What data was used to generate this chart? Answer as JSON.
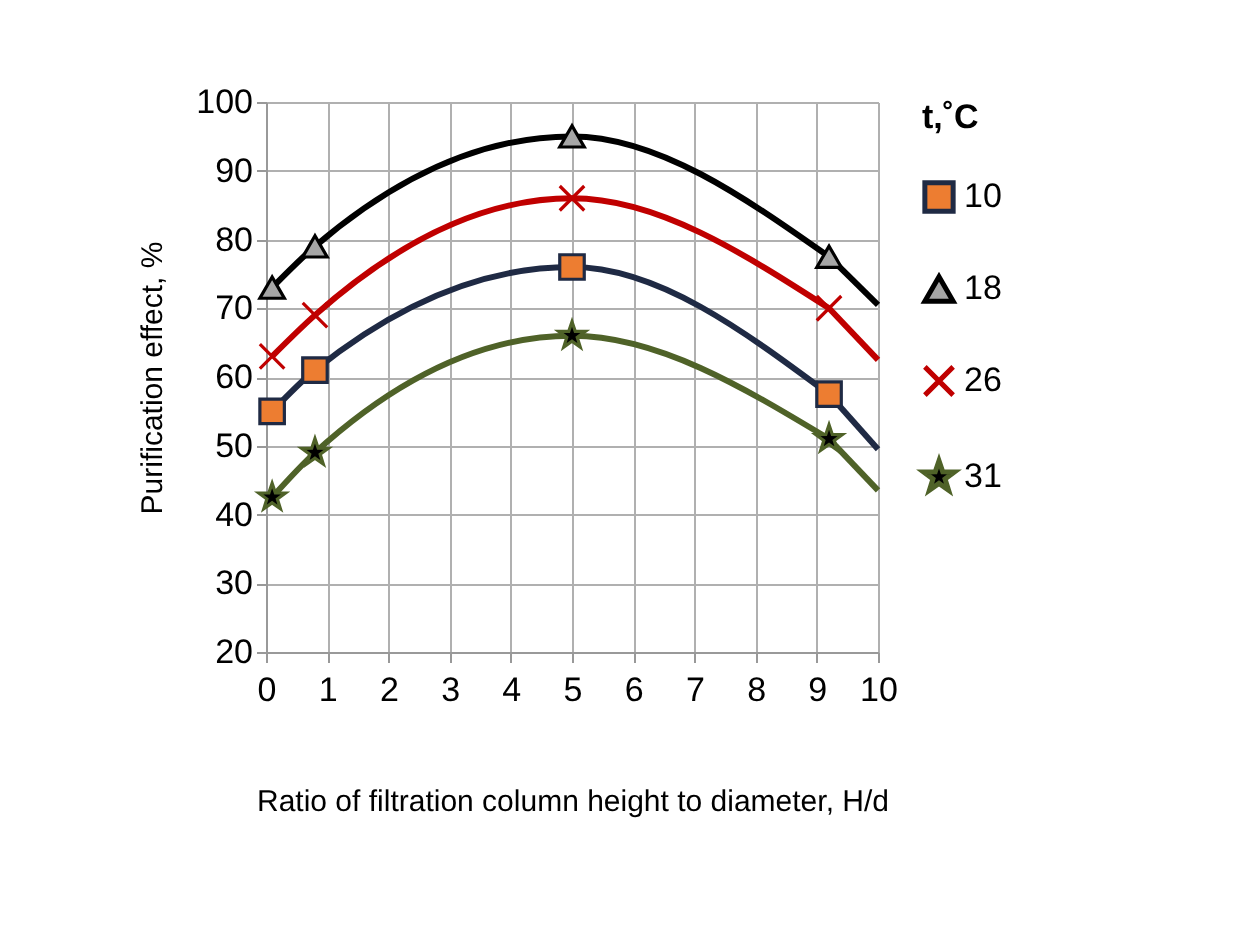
{
  "chart_data": {
    "type": "line",
    "xlabel": "Ratio of filtration column height to diameter, H/d",
    "ylabel": "Purification effect, %",
    "legend_title": "t,˚C",
    "xlim": [
      0,
      10
    ],
    "xticks": [
      0,
      1,
      2,
      3,
      4,
      5,
      6,
      7,
      8,
      9,
      10
    ],
    "ylim": [
      20,
      100
    ],
    "yticks": [
      20,
      30,
      40,
      50,
      60,
      70,
      80,
      90,
      100
    ],
    "grid": true,
    "legend": "right",
    "series": [
      {
        "name": "10",
        "color": "#1f2a44",
        "marker": "square",
        "colors": [
          "#ed7d31",
          "#ed7d31",
          "#ed7d31",
          "#ed7d31"
        ],
        "x": [
          0.1,
          0.8,
          5,
          9.2
        ],
        "values": [
          55,
          61,
          76,
          57.5
        ]
      },
      {
        "name": "18",
        "color": "#000000",
        "marker": "triangle",
        "colors": [
          "#a6a6a6",
          "#a6a6a6",
          "#a6a6a6",
          "#a6a6a6"
        ],
        "x": [
          0.1,
          0.8,
          5,
          9.2
        ],
        "values": [
          73,
          79,
          95,
          77.5
        ]
      },
      {
        "name": "26",
        "color": "#c00000",
        "marker": "cross",
        "colors": [
          "#000000",
          "#000000",
          "#000000",
          "#000000"
        ],
        "x": [
          0.1,
          0.8,
          5,
          9.2
        ],
        "values": [
          63,
          69,
          86,
          70
        ]
      },
      {
        "name": "31",
        "color": "#4f6228",
        "marker": "star",
        "colors": [
          "#000000",
          "#000000",
          "#000000",
          "#000000"
        ],
        "x": [
          0.1,
          0.8,
          5,
          9.2
        ],
        "values": [
          42.5,
          49,
          66,
          51
        ]
      },
      {
        "color": "#1f2a44",
        "x": [
          9.2,
          10
        ],
        "values": [
          57.5,
          49.5
        ]
      },
      {
        "color": "#000000",
        "x": [
          9.2,
          10
        ],
        "values": [
          77.5,
          70.5
        ]
      },
      {
        "color": "#c00000",
        "x": [
          9.2,
          10
        ],
        "values": [
          70,
          62.5
        ]
      },
      {
        "color": "#4f6228",
        "x": [
          9.2,
          10
        ],
        "values": [
          51,
          43.5
        ]
      }
    ]
  }
}
